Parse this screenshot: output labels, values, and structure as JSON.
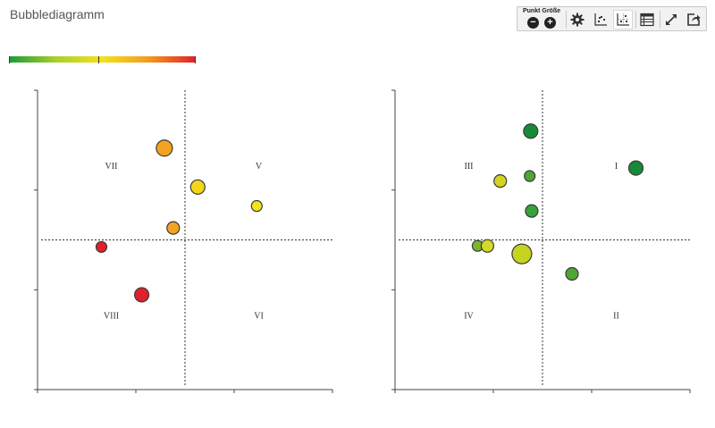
{
  "page": {
    "title": "Bubblediagramm"
  },
  "colorbar": {
    "colors": [
      "#1a9a3a",
      "#a9cf2a",
      "#f3e21b",
      "#f29a22",
      "#e0202a"
    ]
  },
  "toolbar": {
    "point_size_label": "Punkt Größe",
    "minus_glyph": "−",
    "plus_glyph": "+",
    "buttons": [
      {
        "name": "settings-button",
        "icon": "gear-icon"
      },
      {
        "name": "scatter-view-button",
        "icon": "scatter-chart-icon"
      },
      {
        "name": "scatter-grid-view-button",
        "icon": "scatter-grid-icon",
        "active": true
      },
      {
        "name": "table-view-button",
        "icon": "table-icon"
      },
      {
        "name": "fullscreen-button",
        "icon": "expand-icon"
      },
      {
        "name": "share-button",
        "icon": "share-icon"
      }
    ]
  },
  "chart_data": [
    {
      "type": "scatter",
      "title": "",
      "xlabel": "",
      "ylabel": "",
      "xlim": [
        0,
        3
      ],
      "ylim": [
        0,
        3
      ],
      "x_divider": 1.5,
      "y_divider": 1.5,
      "quadrant_labels": {
        "top_left": "VII",
        "top_right": "V",
        "bottom_left": "VIII",
        "bottom_right": "VI"
      },
      "points": [
        {
          "x": 1.29,
          "y": 2.42,
          "size": 9,
          "color": "#f2a321"
        },
        {
          "x": 1.63,
          "y": 2.03,
          "size": 8,
          "color": "#f3d51a"
        },
        {
          "x": 2.23,
          "y": 1.84,
          "size": 6,
          "color": "#f5e31f"
        },
        {
          "x": 1.38,
          "y": 1.62,
          "size": 7,
          "color": "#f2a324"
        },
        {
          "x": 0.65,
          "y": 1.43,
          "size": 6,
          "color": "#e0202a"
        },
        {
          "x": 1.06,
          "y": 0.95,
          "size": 8,
          "color": "#e0202a"
        }
      ]
    },
    {
      "type": "scatter",
      "title": "",
      "xlabel": "",
      "ylabel": "",
      "xlim": [
        0,
        3
      ],
      "ylim": [
        0,
        3
      ],
      "x_divider": 1.5,
      "y_divider": 1.5,
      "quadrant_labels": {
        "top_left": "III",
        "top_right": "I",
        "bottom_left": "IV",
        "bottom_right": "II"
      },
      "points": [
        {
          "x": 1.38,
          "y": 2.59,
          "size": 8,
          "color": "#178a37"
        },
        {
          "x": 2.45,
          "y": 2.22,
          "size": 8,
          "color": "#178a37"
        },
        {
          "x": 1.37,
          "y": 2.14,
          "size": 6,
          "color": "#4fa536"
        },
        {
          "x": 1.07,
          "y": 2.09,
          "size": 7,
          "color": "#d2d41f"
        },
        {
          "x": 1.39,
          "y": 1.79,
          "size": 7,
          "color": "#36a23a"
        },
        {
          "x": 0.84,
          "y": 1.44,
          "size": 6,
          "color": "#7ab52c"
        },
        {
          "x": 0.94,
          "y": 1.44,
          "size": 7,
          "color": "#d7da24"
        },
        {
          "x": 1.29,
          "y": 1.36,
          "size": 11,
          "color": "#c6d31f"
        },
        {
          "x": 1.8,
          "y": 1.16,
          "size": 7,
          "color": "#4fa536"
        }
      ]
    }
  ]
}
